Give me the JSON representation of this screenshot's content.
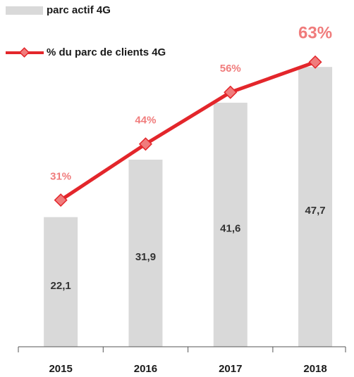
{
  "chart_data": {
    "type": "bar",
    "categories": [
      "2015",
      "2016",
      "2017",
      "2018"
    ],
    "series": [
      {
        "name": "parc actif 4G",
        "type": "bar",
        "color": "#d9d9d9",
        "values": [
          22.1,
          31.9,
          41.6,
          47.7
        ],
        "value_labels": [
          "22,1",
          "31,9",
          "41,6",
          "47,7"
        ]
      },
      {
        "name": "% du parc de clients 4G",
        "type": "line",
        "axis": "y2",
        "color": "#e3262b",
        "marker_color": "#f07c7c",
        "values": [
          31,
          44,
          56,
          63
        ],
        "value_labels": [
          "31%",
          "44%",
          "56%",
          "63%"
        ]
      }
    ],
    "ylim": [
      0,
      50
    ],
    "y2lim": [
      -3,
      65
    ],
    "legend": "top-left"
  }
}
